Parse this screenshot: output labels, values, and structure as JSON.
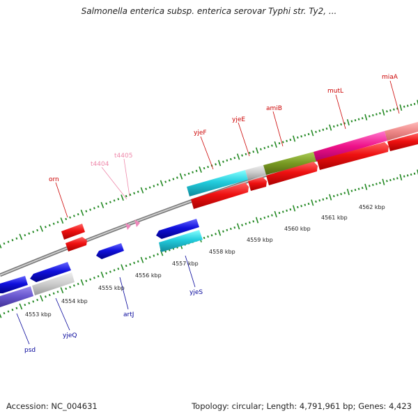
{
  "title": "Salmonella enterica subsp. enterica serovar Typhi str. Ty2, ...",
  "footer": {
    "accession": "Accession: NC_004631",
    "summary": "Topology: circular; Length: 4,791,961 bp; Genes: 4,423"
  },
  "kbp_labels": [
    "4553 kbp",
    "4554 kbp",
    "4555 kbp",
    "4556 kbp",
    "4557 kbp",
    "4558 kbp",
    "4559 kbp",
    "4560 kbp",
    "4561 kbp",
    "4562 kbp"
  ],
  "gene_labels": {
    "orn": "orn",
    "t4404": "t4404",
    "t4405": "t4405",
    "yjeF": "yjeF",
    "yjeE": "yjeE",
    "amiB": "amiB",
    "mutL": "mutL",
    "miaA": "miaA",
    "psd": "psd",
    "yjeQ": "yjeQ",
    "artJ": "artJ",
    "yjeS": "yjeS"
  },
  "colors": {
    "forward_label": "#cc0000",
    "reverse_label": "#000099",
    "trna_label": "#ee88aa",
    "backbone": "#999999",
    "tick": "#228822",
    "cds_red": "#ee1111",
    "cds_blue": "#1111dd",
    "cyan": "#22ccdd",
    "gray": "#cccccc",
    "olive": "#779922",
    "magenta": "#ee1188",
    "salmon": "#ee8888",
    "purple": "#6655cc",
    "trna_pink": "#ee88bb"
  }
}
